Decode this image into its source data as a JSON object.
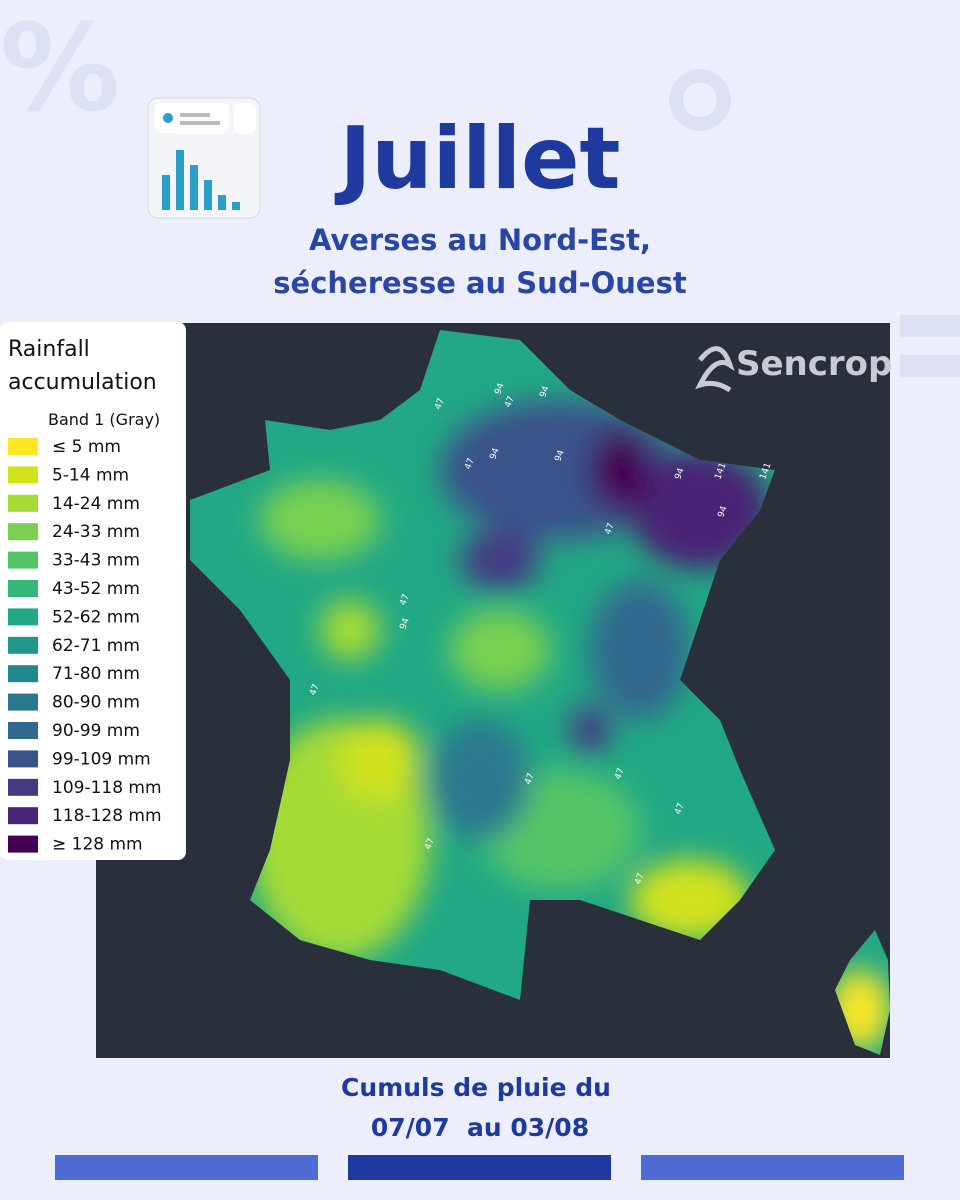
{
  "header": {
    "title": "Juillet",
    "subtitle_lines": [
      "Averses au Nord-Est,",
      "sécheresse au Sud-Ouest"
    ]
  },
  "map": {
    "brand": "Sencrop",
    "legend": {
      "title_lines": [
        "Rainfall",
        "accumulation"
      ],
      "band": "Band 1 (Gray)",
      "items": [
        {
          "label": "≤ 5 mm",
          "color": "#fde725"
        },
        {
          "label": "5-14 mm",
          "color": "#d2e21b"
        },
        {
          "label": "14-24 mm",
          "color": "#a5db36"
        },
        {
          "label": "24-33 mm",
          "color": "#7ad151"
        },
        {
          "label": "33-43 mm",
          "color": "#54c568"
        },
        {
          "label": "43-52 mm",
          "color": "#35b779"
        },
        {
          "label": "52-62 mm",
          "color": "#22a884"
        },
        {
          "label": "62-71 mm",
          "color": "#1f988b"
        },
        {
          "label": "71-80 mm",
          "color": "#23888e"
        },
        {
          "label": "80-90 mm",
          "color": "#2a788e"
        },
        {
          "label": "90-99 mm",
          "color": "#31688e"
        },
        {
          "label": "99-109 mm",
          "color": "#3b528b"
        },
        {
          "label": "109-118 mm",
          "color": "#443a83"
        },
        {
          "label": "118-128 mm",
          "color": "#482475"
        },
        {
          "label": "≥ 128 mm",
          "color": "#440154"
        }
      ]
    },
    "contour_labels": [
      47,
      94,
      47,
      94,
      47,
      94,
      94,
      141,
      141,
      94,
      94,
      47,
      94,
      47,
      47,
      47,
      47,
      47,
      47,
      47
    ]
  },
  "footer": {
    "lines": [
      "Cumuls de pluie du",
      "07/07  au 03/08"
    ]
  }
}
